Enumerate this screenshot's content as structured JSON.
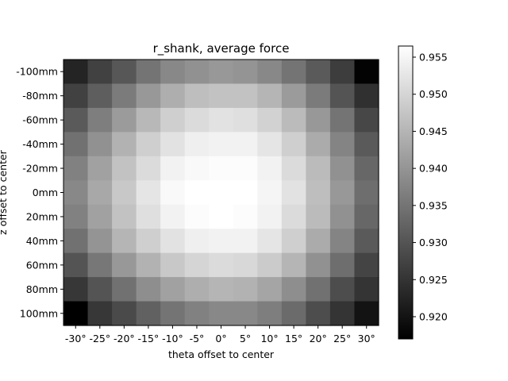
{
  "chart_data": {
    "type": "heatmap",
    "title": "r_shank, average force",
    "xlabel": "theta offset to center",
    "ylabel": "z offset to center",
    "x_categories": [
      "-30°",
      "-25°",
      "-20°",
      "-15°",
      "-10°",
      "-5°",
      "0°",
      "5°",
      "10°",
      "15°",
      "20°",
      "25°",
      "30°"
    ],
    "y_categories": [
      "-100mm",
      "-80mm",
      "-60mm",
      "-40mm",
      "-20mm",
      "0mm",
      "20mm",
      "40mm",
      "60mm",
      "80mm",
      "100mm"
    ],
    "colormap": "gray",
    "value_range": [
      0.917,
      0.9565
    ],
    "colorbar_ticks": [
      "0.920",
      "0.925",
      "0.930",
      "0.935",
      "0.940",
      "0.945",
      "0.950",
      "0.955"
    ],
    "colorbar_tick_values": [
      0.92,
      0.925,
      0.93,
      0.935,
      0.94,
      0.945,
      0.95,
      0.955
    ],
    "values": [
      [
        0.9225,
        0.927,
        0.9305,
        0.935,
        0.938,
        0.9395,
        0.9405,
        0.94,
        0.938,
        0.935,
        0.931,
        0.9265,
        0.9175
      ],
      [
        0.927,
        0.9315,
        0.936,
        0.9405,
        0.944,
        0.9465,
        0.947,
        0.947,
        0.945,
        0.941,
        0.936,
        0.93,
        0.9245
      ],
      [
        0.931,
        0.9365,
        0.941,
        0.9455,
        0.949,
        0.951,
        0.952,
        0.9515,
        0.9495,
        0.946,
        0.9405,
        0.935,
        0.928
      ],
      [
        0.9345,
        0.9395,
        0.9445,
        0.949,
        0.952,
        0.954,
        0.9545,
        0.9545,
        0.9525,
        0.949,
        0.9435,
        0.9375,
        0.931
      ],
      [
        0.937,
        0.942,
        0.947,
        0.951,
        0.9545,
        0.9555,
        0.956,
        0.956,
        0.9545,
        0.951,
        0.946,
        0.9395,
        0.933
      ],
      [
        0.938,
        0.943,
        0.948,
        0.9525,
        0.9555,
        0.9565,
        0.9565,
        0.9565,
        0.955,
        0.952,
        0.9465,
        0.9405,
        0.934
      ],
      [
        0.937,
        0.942,
        0.947,
        0.9515,
        0.9545,
        0.956,
        0.9565,
        0.956,
        0.9545,
        0.951,
        0.946,
        0.9395,
        0.933
      ],
      [
        0.9345,
        0.94,
        0.945,
        0.949,
        0.952,
        0.954,
        0.9545,
        0.9545,
        0.9525,
        0.949,
        0.9435,
        0.9375,
        0.931
      ],
      [
        0.93,
        0.9355,
        0.9405,
        0.9445,
        0.948,
        0.95,
        0.951,
        0.9505,
        0.9485,
        0.945,
        0.9395,
        0.934,
        0.9275
      ],
      [
        0.9255,
        0.93,
        0.9345,
        0.939,
        0.942,
        0.944,
        0.945,
        0.9445,
        0.9425,
        0.939,
        0.9345,
        0.929,
        0.925
      ],
      [
        0.917,
        0.9255,
        0.9285,
        0.932,
        0.935,
        0.937,
        0.938,
        0.938,
        0.9365,
        0.9335,
        0.929,
        0.925,
        0.92
      ]
    ]
  }
}
